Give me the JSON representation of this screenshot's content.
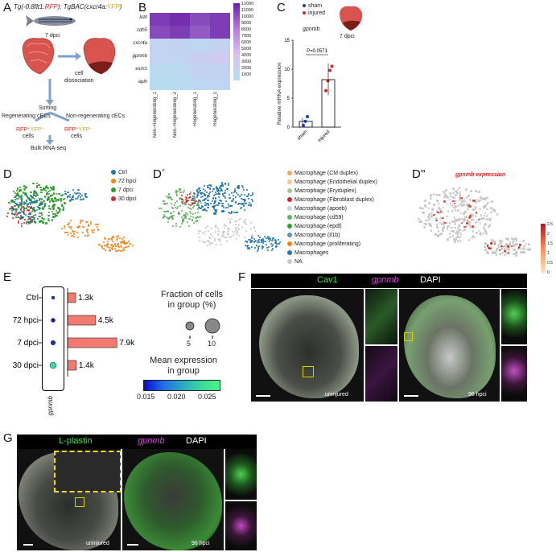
{
  "panels": {
    "A": "A",
    "B": "B",
    "C": "C",
    "D": "D",
    "Dp": "D´",
    "Dpp": "D''",
    "E": "E",
    "F": "F",
    "G": "G"
  },
  "panelA": {
    "title_prefix": "Tg(-0.8flt1:",
    "title_rfp": "RFP",
    "title_mid": "); TgBAC(cxcr4a:",
    "title_yfp": "YFP",
    "title_end": ")",
    "timepoint": "7 dpci",
    "dissociation": "cell\ndissociation",
    "sorting": "Sorting",
    "regen": "Regenerating cECs",
    "nonregen": "Non-regenerating cECs",
    "cells1_a": "RFP⁺",
    "cells1_b": "YFP⁺",
    "cells2_a": "RFP⁺",
    "cells2_b": "YFP⁻",
    "cells": "cells",
    "bulk": "Bulk RNA-seq"
  },
  "panelB": {
    "genes": [
      "kdrl",
      "cdh5",
      "cxcr4a",
      "gpnmb",
      "esm1",
      "apln"
    ],
    "samples": [
      "Non−Regenerating_1",
      "Non−Regenerating_2",
      "Regenerating_1",
      "Regenerating_2"
    ],
    "colorbar_ticks": [
      "12000",
      "11000",
      "10000",
      "9000",
      "8000",
      "7000",
      "6000",
      "5000",
      "4000",
      "3000",
      "2000",
      "1000"
    ],
    "values": [
      [
        11000,
        11500,
        10500,
        11000
      ],
      [
        10500,
        11000,
        10000,
        11000
      ],
      [
        3000,
        3200,
        2800,
        3500
      ],
      [
        3000,
        3000,
        4200,
        5000
      ],
      [
        2000,
        2200,
        3500,
        3200
      ],
      [
        1500,
        1800,
        2800,
        3000
      ]
    ]
  },
  "panelC": {
    "legend_sham": "sham",
    "legend_injured": "injured",
    "gene": "gpnmb",
    "pvalue": "P=0.0571",
    "ylabel": "Relative mRNA expression",
    "heart_label": "7 dpci",
    "yticks": [
      "0",
      "5",
      "10",
      "15"
    ],
    "categories": [
      "sham",
      "injured"
    ]
  },
  "chart_data": [
    {
      "type": "bar",
      "title": "gpnmb",
      "categories": [
        "sham",
        "injured"
      ],
      "values": [
        1.0,
        8.2
      ],
      "ylabel": "Relative mRNA expression",
      "ylim": [
        0,
        15
      ],
      "points": {
        "sham": [
          0.3,
          1.0,
          1.8
        ],
        "injured": [
          6.3,
          8.0,
          9.8,
          10.5
        ]
      }
    },
    {
      "type": "bar",
      "categories": [
        "Ctrl",
        "72 hpci",
        "7 dpci",
        "30 dpci"
      ],
      "values": [
        1300,
        4500,
        7900,
        1400
      ],
      "value_labels": [
        "1.3k",
        "4.5k",
        "7.9k",
        "1.4k"
      ]
    }
  ],
  "panelD": {
    "legend": [
      {
        "label": "Ctrl",
        "color": "#1f77b4"
      },
      {
        "label": "72 hpci",
        "color": "#ff7f0e"
      },
      {
        "label": "7 dpci",
        "color": "#2ca02c"
      },
      {
        "label": "30 dpci",
        "color": "#d62728"
      }
    ]
  },
  "panelDp": {
    "legend": [
      {
        "label": "Macrophage  (CM duplex)",
        "color": "#f5a55a"
      },
      {
        "label": "Macrophage  (Endothelial duplex)",
        "color": "#f7c48d"
      },
      {
        "label": "Macrophage  (Eryduplex)",
        "color": "#a3c98a"
      },
      {
        "label": "Macrophage  (Fibroblast duplex)",
        "color": "#d62728"
      },
      {
        "label": "Macrophage  (apoeb)",
        "color": "#c5d5ea"
      },
      {
        "label": "Macrophage  (cd59)",
        "color": "#5fb35c"
      },
      {
        "label": "Macrophage  (epdl)",
        "color": "#2ca02c"
      },
      {
        "label": "Macrophage  (il1b)",
        "color": "#5b8dbf"
      },
      {
        "label": "Macrophage  (proliferating)",
        "color": "#ff7f0e"
      },
      {
        "label": "Macrophages",
        "color": "#1f77b4"
      },
      {
        "label": "NA",
        "color": "#c7c7c7"
      }
    ]
  },
  "panelDpp": {
    "title": "gpnmb expression",
    "ticks": [
      "2.5",
      "2",
      "1.5",
      "1",
      "0.5",
      "0"
    ]
  },
  "panelE": {
    "groups": [
      "Ctrl",
      "72 hpci",
      "7 dpci",
      "30 dpci"
    ],
    "gene": "gpnmb",
    "bar_labels": [
      "1.3k",
      "4.5k",
      "7.9k",
      "1.4k"
    ],
    "fraction_title": "Fraction of cells\nin group (%)",
    "fraction_ticks": [
      "5",
      "10"
    ],
    "mean_title": "Mean expression\nin group",
    "mean_ticks": [
      "0.015",
      "0.020",
      "0.025"
    ]
  },
  "panelF": {
    "ch1": "Cav1",
    "ch2": "gpnmb",
    "ch3": "DAPI",
    "label_left": "uninjured",
    "label_right": "96 hpci"
  },
  "panelG": {
    "ch1": "L-plastin",
    "ch2": "gpnmb",
    "ch3": "DAPI",
    "label_left": "uninjured",
    "label_right": "96 hpci"
  }
}
